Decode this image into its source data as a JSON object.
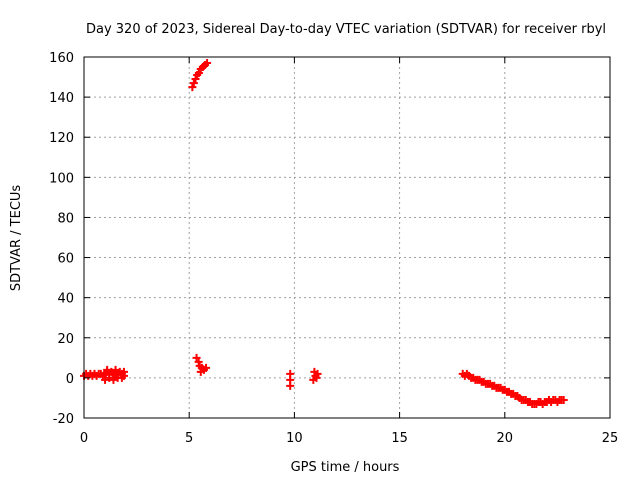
{
  "chart_data": {
    "type": "scatter",
    "title": "Day 320 of 2023, Sidereal Day-to-day VTEC variation (SDTVAR) for receiver rbyl",
    "xlabel": "GPS time / hours",
    "ylabel": "SDTVAR / TECUs",
    "xlim": [
      0,
      25
    ],
    "ylim": [
      -20,
      160
    ],
    "xticks": [
      "0",
      "5",
      "10",
      "15",
      "20",
      "25"
    ],
    "yticks": [
      "-20",
      "0",
      "20",
      "40",
      "60",
      "80",
      "100",
      "120",
      "140",
      "160"
    ],
    "grid": true,
    "marker": "+",
    "series_color": "#ff0000",
    "points": [
      [
        0.0,
        1
      ],
      [
        0.1,
        2
      ],
      [
        0.2,
        1
      ],
      [
        0.3,
        2
      ],
      [
        0.4,
        1
      ],
      [
        0.5,
        2
      ],
      [
        0.6,
        1
      ],
      [
        0.7,
        2
      ],
      [
        0.8,
        2
      ],
      [
        0.9,
        1
      ],
      [
        1.0,
        2
      ],
      [
        1.1,
        3
      ],
      [
        1.2,
        2
      ],
      [
        1.3,
        3
      ],
      [
        1.4,
        2
      ],
      [
        1.5,
        1
      ],
      [
        1.6,
        2
      ],
      [
        1.7,
        3
      ],
      [
        1.8,
        2
      ],
      [
        1.9,
        1
      ],
      [
        1.0,
        -1
      ],
      [
        1.2,
        0
      ],
      [
        1.4,
        -1
      ],
      [
        1.6,
        0
      ],
      [
        1.8,
        0
      ],
      [
        1.1,
        4
      ],
      [
        1.5,
        4
      ],
      [
        1.9,
        3
      ],
      [
        5.15,
        145
      ],
      [
        5.22,
        147
      ],
      [
        5.3,
        149
      ],
      [
        5.38,
        151
      ],
      [
        5.46,
        152
      ],
      [
        5.55,
        154
      ],
      [
        5.65,
        155
      ],
      [
        5.75,
        156
      ],
      [
        5.85,
        157
      ],
      [
        5.35,
        10
      ],
      [
        5.45,
        8
      ],
      [
        5.5,
        6
      ],
      [
        5.6,
        5
      ],
      [
        5.7,
        4
      ],
      [
        5.8,
        5
      ],
      [
        5.55,
        3
      ],
      [
        9.8,
        -4
      ],
      [
        9.8,
        -1
      ],
      [
        9.8,
        2
      ],
      [
        10.9,
        -1
      ],
      [
        11.0,
        1
      ],
      [
        11.1,
        2
      ],
      [
        10.95,
        3
      ],
      [
        11.05,
        0
      ],
      [
        18.0,
        2
      ],
      [
        18.1,
        1
      ],
      [
        18.2,
        2
      ],
      [
        18.3,
        1
      ],
      [
        18.4,
        0
      ],
      [
        18.5,
        0
      ],
      [
        18.6,
        -1
      ],
      [
        18.7,
        -1
      ],
      [
        18.8,
        -1
      ],
      [
        18.9,
        -2
      ],
      [
        19.0,
        -2
      ],
      [
        19.1,
        -3
      ],
      [
        19.2,
        -3
      ],
      [
        19.3,
        -3
      ],
      [
        19.4,
        -4
      ],
      [
        19.5,
        -4
      ],
      [
        19.6,
        -5
      ],
      [
        19.7,
        -5
      ],
      [
        19.8,
        -5
      ],
      [
        19.9,
        -6
      ],
      [
        20.0,
        -6
      ],
      [
        20.1,
        -7
      ],
      [
        20.2,
        -7
      ],
      [
        20.3,
        -8
      ],
      [
        20.4,
        -8
      ],
      [
        20.5,
        -9
      ],
      [
        20.6,
        -9
      ],
      [
        20.7,
        -10
      ],
      [
        20.8,
        -11
      ],
      [
        20.9,
        -11
      ],
      [
        21.0,
        -11
      ],
      [
        21.1,
        -12
      ],
      [
        21.2,
        -12
      ],
      [
        21.3,
        -13
      ],
      [
        21.4,
        -13
      ],
      [
        21.5,
        -13
      ],
      [
        21.6,
        -12
      ],
      [
        21.7,
        -12
      ],
      [
        21.8,
        -13
      ],
      [
        21.9,
        -12
      ],
      [
        22.0,
        -12
      ],
      [
        22.1,
        -11
      ],
      [
        22.2,
        -12
      ],
      [
        22.3,
        -11
      ],
      [
        22.4,
        -11
      ],
      [
        22.5,
        -12
      ],
      [
        22.6,
        -11
      ],
      [
        22.7,
        -11
      ],
      [
        22.8,
        -11
      ]
    ]
  }
}
